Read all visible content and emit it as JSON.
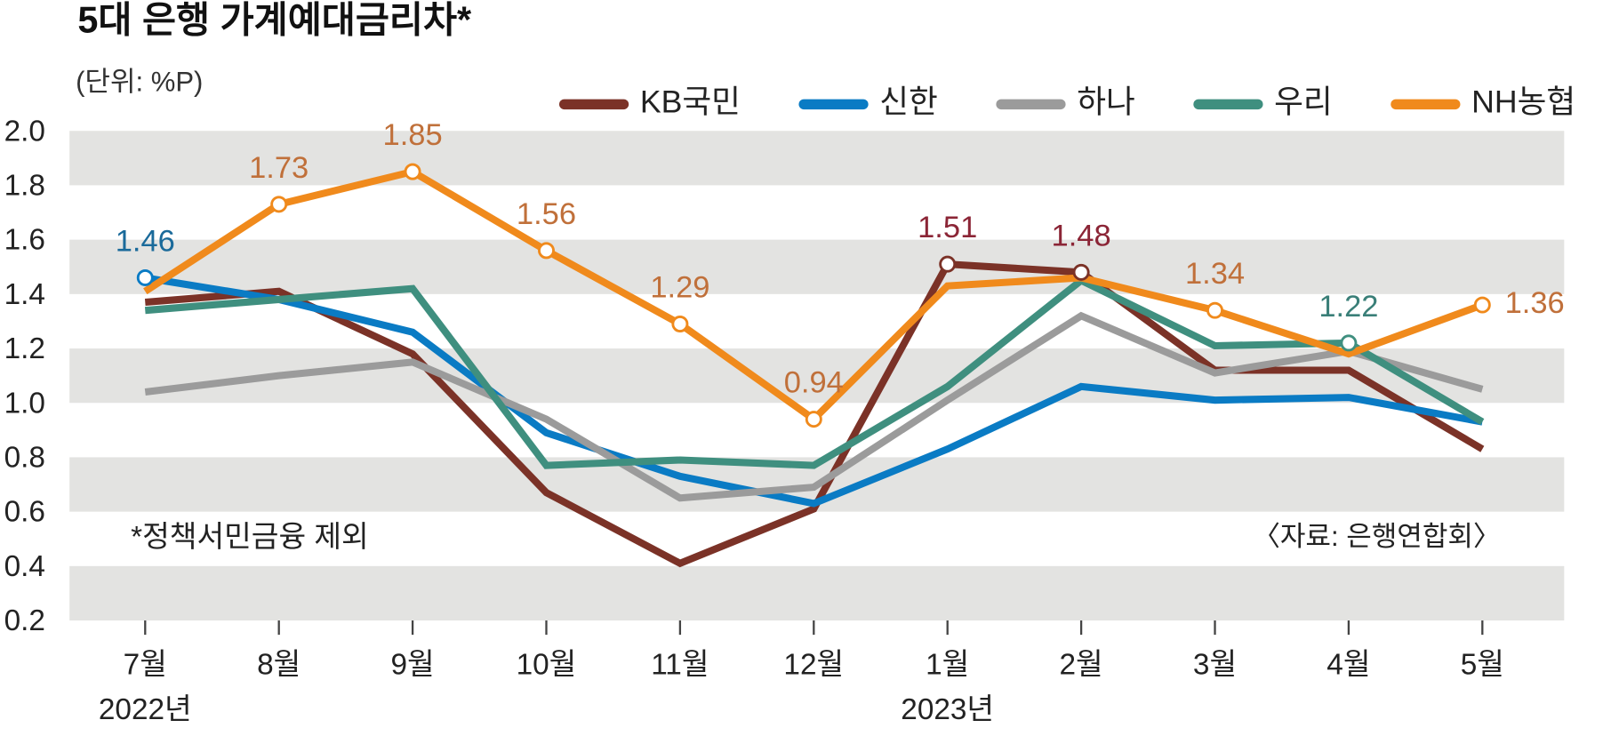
{
  "chart_data": {
    "type": "line",
    "title": "5대 은행 가계예대금리차*",
    "unit": "(단위: %P)",
    "note": "*정책서민금융 제외",
    "source": "〈자료: 은행연합회〉",
    "categories": [
      "7월",
      "8월",
      "9월",
      "10월",
      "11월",
      "12월",
      "1월",
      "2월",
      "3월",
      "4월",
      "5월"
    ],
    "x_sublabels": [
      "2022년",
      null,
      null,
      null,
      null,
      null,
      "2023년",
      null,
      null,
      null,
      null
    ],
    "ylim": [
      0.2,
      2.0
    ],
    "yticks": [
      0.2,
      0.4,
      0.6,
      0.8,
      {
        "value": 1.0,
        "label": "1.0"
      },
      1.2,
      1.4,
      1.6,
      1.8,
      {
        "value": 2.0,
        "label": "2.0"
      }
    ],
    "grid": "bands",
    "legend": "top",
    "series": [
      {
        "name": "KB국민",
        "color": "#7b3227",
        "label_color": "#8b2536",
        "labeled_points": [
          6,
          7
        ],
        "values": [
          1.37,
          1.41,
          1.18,
          0.67,
          0.41,
          0.61,
          1.51,
          1.48,
          1.12,
          1.12,
          0.83
        ]
      },
      {
        "name": "신한",
        "color": "#0a7bc4",
        "label_color": "#1a6a9a",
        "labeled_points": [
          0
        ],
        "values": [
          1.46,
          1.38,
          1.26,
          0.89,
          0.73,
          0.63,
          0.83,
          1.06,
          1.01,
          1.02,
          0.93
        ]
      },
      {
        "name": "하나",
        "color": "#9b9b9b",
        "label_color": "#777777",
        "labeled_points": [],
        "values": [
          1.04,
          1.1,
          1.15,
          0.94,
          0.65,
          0.69,
          1.01,
          1.32,
          1.11,
          1.19,
          1.05
        ]
      },
      {
        "name": "우리",
        "color": "#3f8f7f",
        "label_color": "#3a7f78",
        "labeled_points": [
          9
        ],
        "values": [
          1.34,
          1.38,
          1.42,
          0.77,
          0.79,
          0.77,
          1.06,
          1.45,
          1.21,
          1.22,
          0.93
        ]
      },
      {
        "name": "NH농협",
        "color": "#f08a1c",
        "label_color": "#c0703a",
        "labeled_points": [
          1,
          2,
          3,
          4,
          5,
          8,
          10
        ],
        "values": [
          1.41,
          1.73,
          1.85,
          1.56,
          1.29,
          0.94,
          1.43,
          1.46,
          1.34,
          1.18,
          1.36
        ]
      }
    ]
  }
}
